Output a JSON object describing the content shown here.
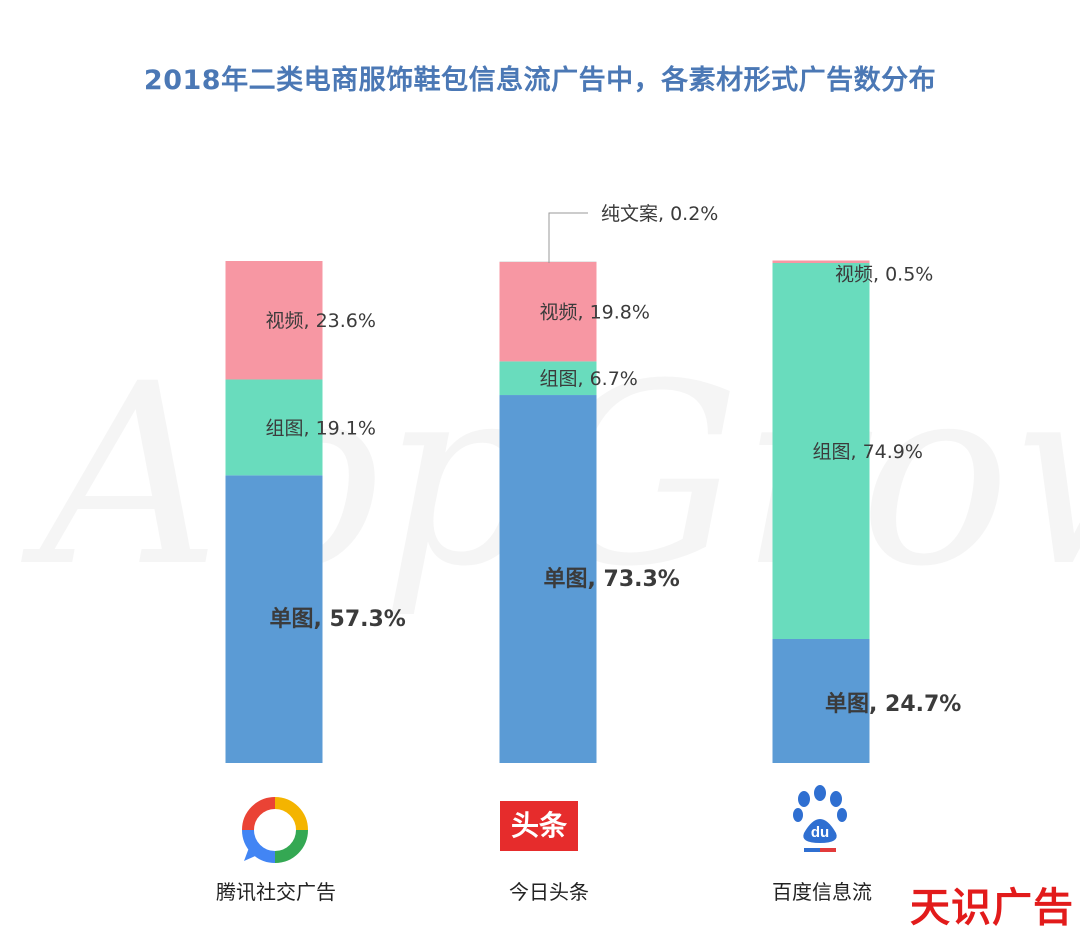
{
  "chart_data": {
    "type": "bar",
    "stacked": true,
    "title": "2018年二类电商服饰鞋包信息流广告中，各素材形式广告数分布",
    "categories": [
      "腾讯社交广告",
      "今日头条",
      "百度信息流"
    ],
    "ylim": [
      0,
      100
    ],
    "series": [
      {
        "name": "单图",
        "values": [
          57.3,
          73.3,
          24.7
        ],
        "labels": [
          "单图, 57.3%",
          "单图, 73.3%",
          "单图, 24.7%"
        ],
        "color": "#5b9bd5"
      },
      {
        "name": "组图",
        "values": [
          19.1,
          6.7,
          74.9
        ],
        "labels": [
          "组图, 19.1%",
          "组图, 6.7%",
          "组图, 74.9%"
        ],
        "color": "#69dcbd"
      },
      {
        "name": "视频",
        "values": [
          23.6,
          19.8,
          0.5
        ],
        "labels": [
          "视频, 23.6%",
          "视频, 19.8%",
          "视频, 0.5%"
        ],
        "color": "#f797a3"
      },
      {
        "name": "纯文案",
        "values": [
          0,
          0.2,
          0
        ],
        "labels": [
          "",
          "纯文案, 0.2%",
          ""
        ],
        "color": "#e8e8e8"
      }
    ]
  },
  "platforms": [
    {
      "name": "腾讯社交广告",
      "icon": "tencent-social-ads-logo-icon"
    },
    {
      "name": "今日头条",
      "icon": "toutiao-logo-icon",
      "logo_text": "头条"
    },
    {
      "name": "百度信息流",
      "icon": "baidu-paw-logo-icon",
      "logo_text": "du"
    }
  ],
  "watermark": "AppGrowing",
  "brand_stamp": "天识广告",
  "colors": {
    "title": "#4b78b5",
    "brand_stamp": "#e21b1b"
  }
}
